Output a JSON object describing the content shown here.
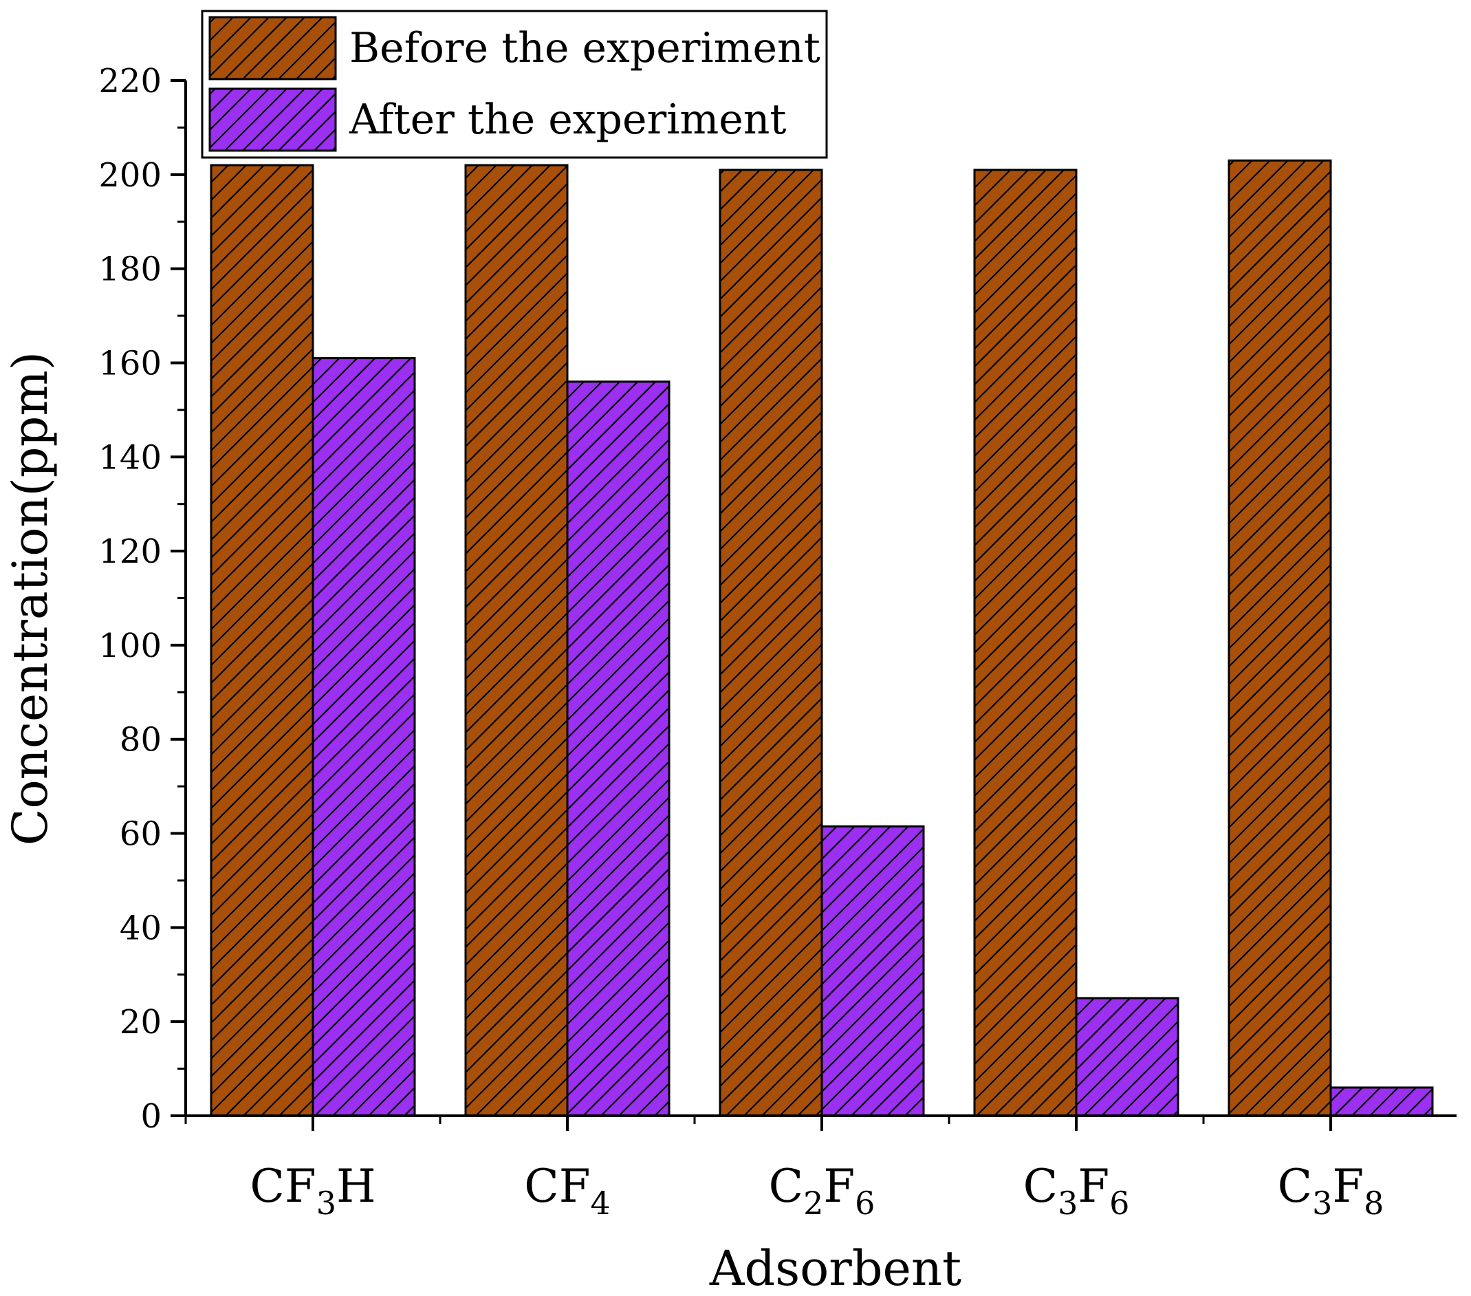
{
  "chart_data": {
    "type": "bar",
    "title": "",
    "xlabel": "Adsorbent",
    "ylabel": "Concentration(ppm)",
    "ylim": [
      0,
      220
    ],
    "yticks": [
      0,
      20,
      40,
      60,
      80,
      100,
      120,
      140,
      160,
      180,
      200,
      220
    ],
    "yticks_minor_step": 10,
    "grid": false,
    "legend_position": "top-left",
    "categories": [
      "CF3H",
      "CF4",
      "C2F6",
      "C3F6",
      "C3F8"
    ],
    "category_labels": [
      {
        "base": "CF",
        "sub": "3",
        "tail": "H"
      },
      {
        "base": "CF",
        "sub": "4",
        "tail": ""
      },
      {
        "base": "C",
        "sub": "2",
        "tail": "F",
        "sub2": "6"
      },
      {
        "base": "C",
        "sub": "3",
        "tail": "F",
        "sub2": "6"
      },
      {
        "base": "C",
        "sub": "3",
        "tail": "F",
        "sub2": "8"
      }
    ],
    "series": [
      {
        "name": "Before the experiment",
        "color": "#A8500A",
        "values": [
          202,
          202,
          201,
          201,
          203
        ]
      },
      {
        "name": "After the experiment",
        "color": "#9B30F0",
        "values": [
          161,
          156,
          61.5,
          25,
          6
        ]
      }
    ]
  }
}
